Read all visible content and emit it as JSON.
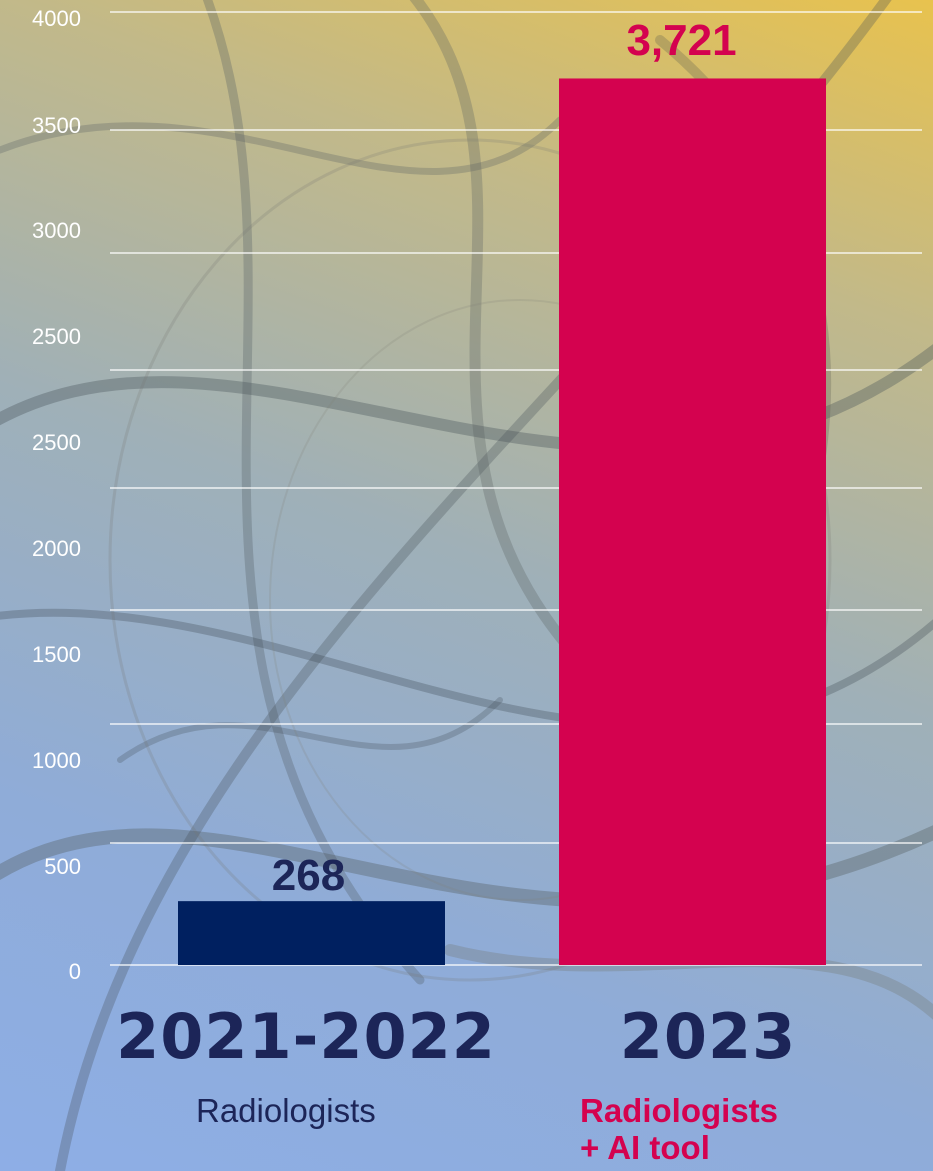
{
  "chart_data": {
    "type": "bar",
    "categories": [
      "2021-2022",
      "2023"
    ],
    "category_subtitles": [
      "Radiologists",
      "Radiologists + AI tool"
    ],
    "category_subtitle_lines": [
      [
        "Radiologists"
      ],
      [
        "Radiologists",
        "+ AI tool"
      ]
    ],
    "values": [
      268,
      3721
    ],
    "value_labels": [
      "268",
      "3,721"
    ],
    "bar_colors": [
      "#002060",
      "#d4024f"
    ],
    "ytick_labels": [
      "0",
      "500",
      "1000",
      "1500",
      "2000",
      "2500",
      "2500",
      "3000",
      "3500",
      "4000"
    ],
    "ylim": [
      0,
      4000
    ],
    "grid": true
  }
}
